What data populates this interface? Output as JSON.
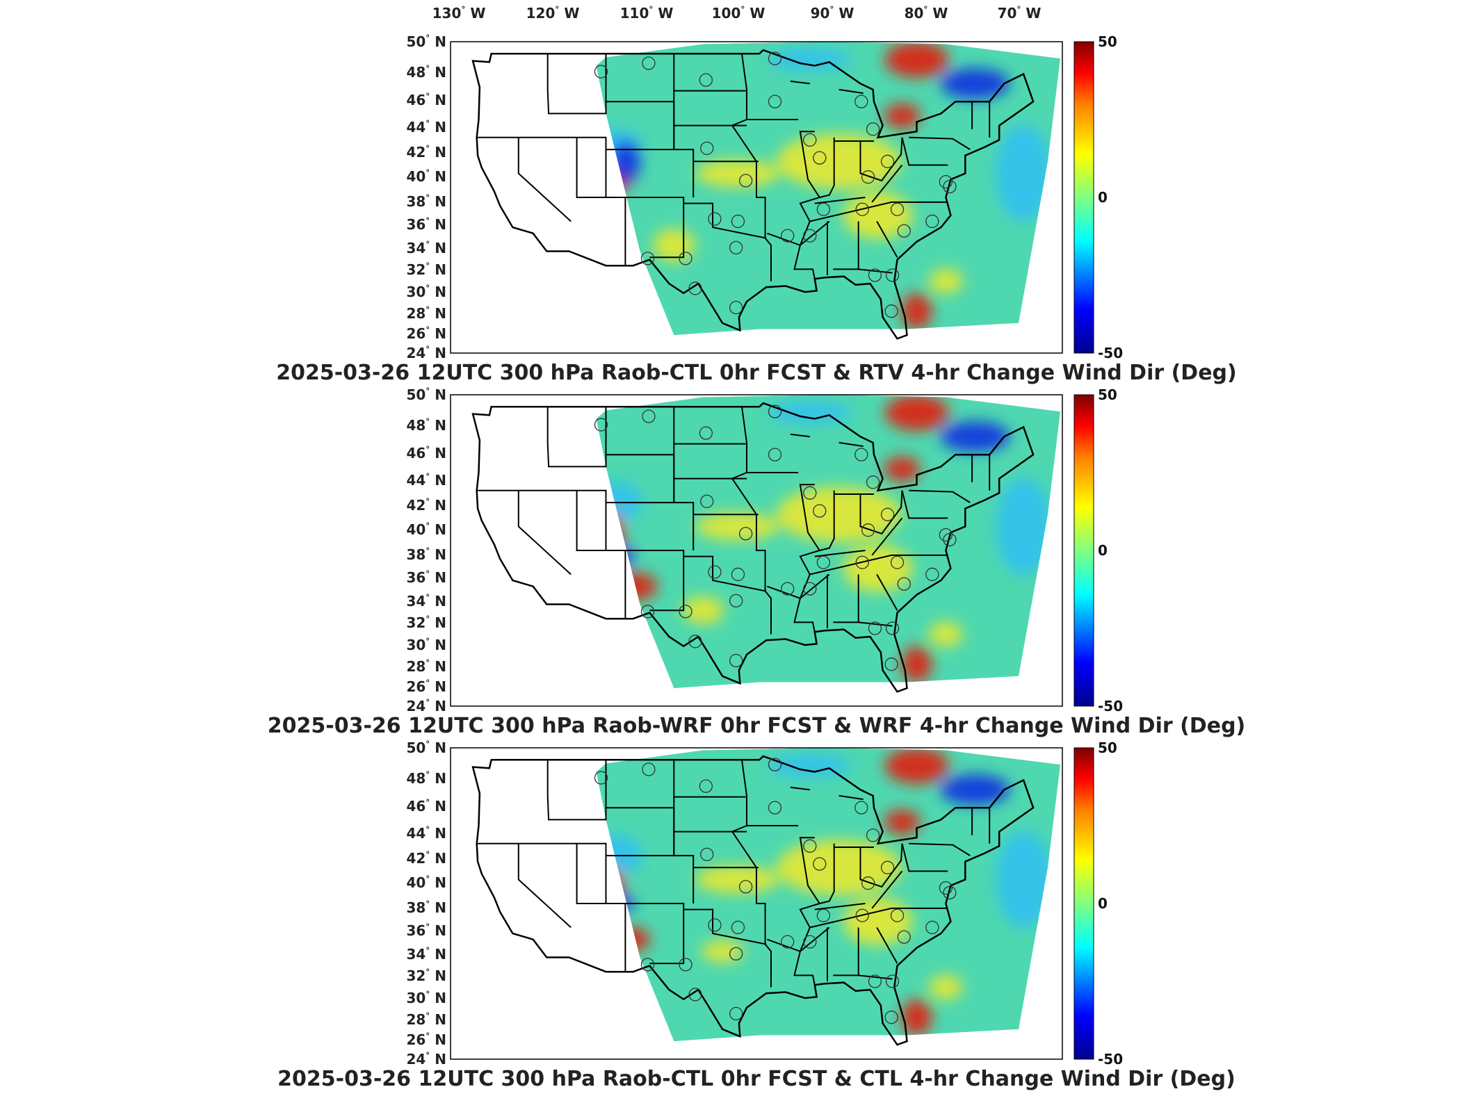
{
  "lon_labels": [
    "130",
    "120",
    "110",
    "100",
    "90",
    "80",
    "70"
  ],
  "lon_suffix": "W",
  "lat_labels": [
    "50",
    "48",
    "46",
    "44",
    "42",
    "40",
    "38",
    "36",
    "34",
    "32",
    "30",
    "28",
    "26",
    "24"
  ],
  "lat_suffix": "N",
  "degree_symbol": "°",
  "colorbar": {
    "max_label": "50",
    "mid_label": "0",
    "min_label": "-50",
    "colors": [
      "#00008f",
      "#0000ff",
      "#00ffff",
      "#80ff80",
      "#ffff00",
      "#ff7f00",
      "#ff0000",
      "#800000"
    ]
  },
  "panels": [
    {
      "title": "2025-03-26 12UTC 300 hPa Raob-CTL 0hr FCST & RTV 4-hr Change Wind Dir (Deg)"
    },
    {
      "title": "2025-03-26 12UTC 300 hPa Raob-WRF 0hr FCST & WRF 4-hr Change Wind Dir (Deg)"
    },
    {
      "title": "2025-03-26 12UTC 300 hPa Raob-CTL 0hr FCST & CTL 4-hr Change Wind Dir (Deg)"
    }
  ],
  "map": {
    "lon_range": [
      -127,
      -64
    ],
    "lat_range": [
      24,
      50
    ],
    "field_colors": {
      "background": "#4fd8b0",
      "warm": "#e8e830",
      "hot": "#e02010",
      "cold": "#1030e0",
      "cool": "#30c0f0"
    }
  }
}
